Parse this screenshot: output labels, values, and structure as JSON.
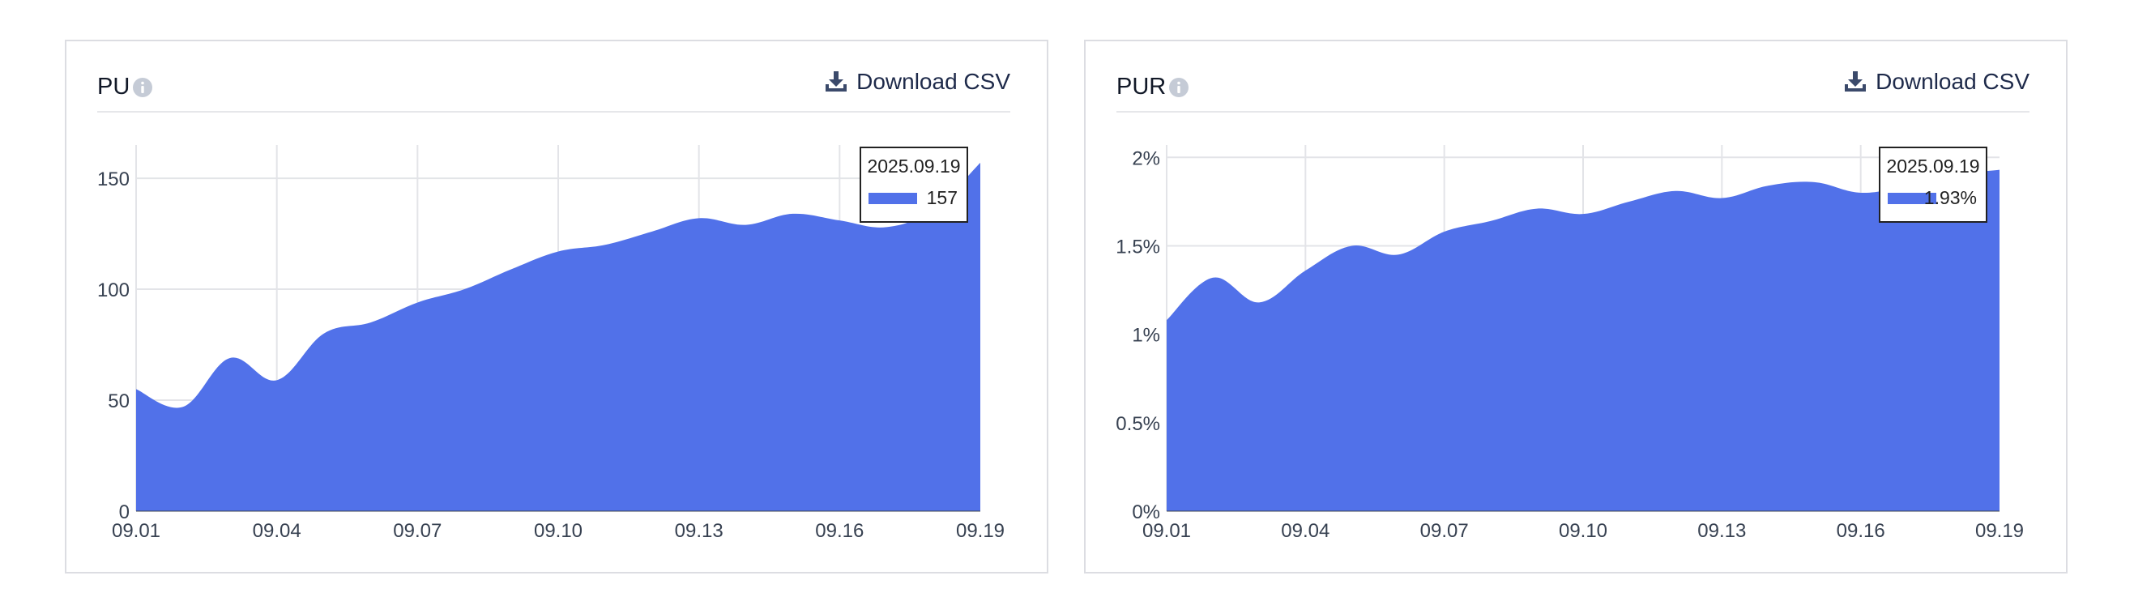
{
  "colors": {
    "area": "#5171e9",
    "grid": "#e3e4e8",
    "axis_text": "#374151",
    "tooltip_border": "#222222"
  },
  "panels": [
    {
      "title": "PU",
      "info_icon": "info-icon",
      "download": {
        "label": "Download CSV",
        "icon": "download-icon"
      },
      "tooltip": {
        "date": "2025.09.19",
        "value": "157"
      }
    },
    {
      "title": "PUR",
      "info_icon": "info-icon",
      "download": {
        "label": "Download CSV",
        "icon": "download-icon"
      },
      "tooltip": {
        "date": "2025.09.19",
        "value": "1.93%"
      }
    }
  ],
  "chart_data": [
    {
      "type": "area",
      "title": "PU",
      "x": [
        "09.01",
        "09.02",
        "09.03",
        "09.04",
        "09.05",
        "09.06",
        "09.07",
        "09.08",
        "09.09",
        "09.10",
        "09.11",
        "09.12",
        "09.13",
        "09.14",
        "09.15",
        "09.16",
        "09.17",
        "09.18",
        "09.19"
      ],
      "x_tick_labels": [
        "09.01",
        "09.04",
        "09.07",
        "09.10",
        "09.13",
        "09.16",
        "09.19"
      ],
      "series": [
        {
          "values": [
            55,
            47,
            69,
            59,
            80,
            85,
            94,
            100,
            109,
            117,
            120,
            126,
            132,
            129,
            134,
            131,
            128,
            136,
            157
          ]
        }
      ],
      "y_ticks": [
        0,
        50,
        100,
        150
      ],
      "y_tick_labels": [
        "0",
        "50",
        "100",
        "150"
      ],
      "ylim": [
        0,
        165
      ],
      "grid": true,
      "legend": "tooltip top-right"
    },
    {
      "type": "area",
      "title": "PUR",
      "x": [
        "09.01",
        "09.02",
        "09.03",
        "09.04",
        "09.05",
        "09.06",
        "09.07",
        "09.08",
        "09.09",
        "09.10",
        "09.11",
        "09.12",
        "09.13",
        "09.14",
        "09.15",
        "09.16",
        "09.17",
        "09.18",
        "09.19"
      ],
      "x_tick_labels": [
        "09.01",
        "09.04",
        "09.07",
        "09.10",
        "09.13",
        "09.16",
        "09.19"
      ],
      "series": [
        {
          "values": [
            1.08,
            1.32,
            1.18,
            1.36,
            1.5,
            1.45,
            1.58,
            1.64,
            1.71,
            1.68,
            1.75,
            1.81,
            1.77,
            1.84,
            1.86,
            1.8,
            1.84,
            1.9,
            1.93
          ]
        }
      ],
      "y_ticks": [
        0,
        0.5,
        1,
        1.5,
        2
      ],
      "y_tick_labels": [
        "0%",
        "0.5%",
        "1%",
        "1.5%",
        "2%"
      ],
      "ylim": [
        0,
        2.07
      ],
      "grid": true,
      "legend": "tooltip top-right"
    }
  ]
}
